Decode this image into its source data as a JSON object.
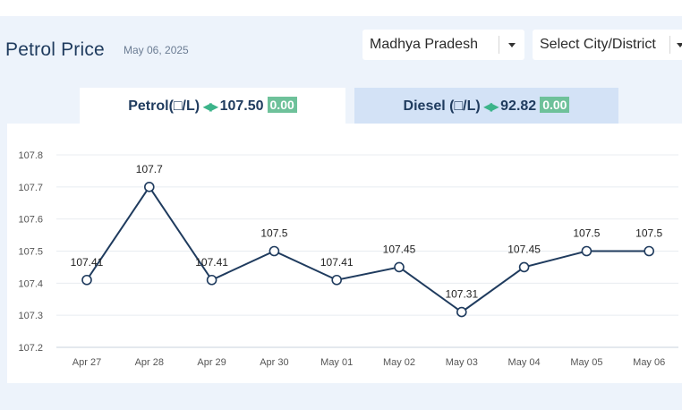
{
  "header": {
    "title": "Petrol Price",
    "date": "May 06, 2025"
  },
  "selects": {
    "state": "Madhya Pradesh",
    "city": "Select City/District"
  },
  "tabs": [
    {
      "label": "Petrol(□/L)",
      "price": "107.50",
      "change": "0.00",
      "active": true
    },
    {
      "label": "Diesel (□/L)",
      "price": "92.82",
      "change": "0.00",
      "active": false
    }
  ],
  "colors": {
    "line": "#1f3b5e",
    "change_badge": "#6ec19a",
    "arrows": "#3cb48a"
  },
  "chart_data": {
    "type": "line",
    "categories": [
      "Apr 27",
      "Apr 28",
      "Apr 29",
      "Apr 30",
      "May 01",
      "May 02",
      "May 03",
      "May 04",
      "May 05",
      "May 06"
    ],
    "series": [
      {
        "values": [
          107.41,
          107.7,
          107.41,
          107.5,
          107.41,
          107.45,
          107.31,
          107.45,
          107.5,
          107.5
        ]
      }
    ],
    "ylim": [
      107.2,
      107.8
    ],
    "yticks": [
      "107.2",
      "107.3",
      "107.4",
      "107.5",
      "107.6",
      "107.7",
      "107.8"
    ],
    "data_labels": [
      "107.41",
      "107.7",
      "107.41",
      "107.5",
      "107.41",
      "107.45",
      "107.31",
      "107.45",
      "107.5",
      "107.5"
    ],
    "grid": true,
    "legend": "none"
  }
}
